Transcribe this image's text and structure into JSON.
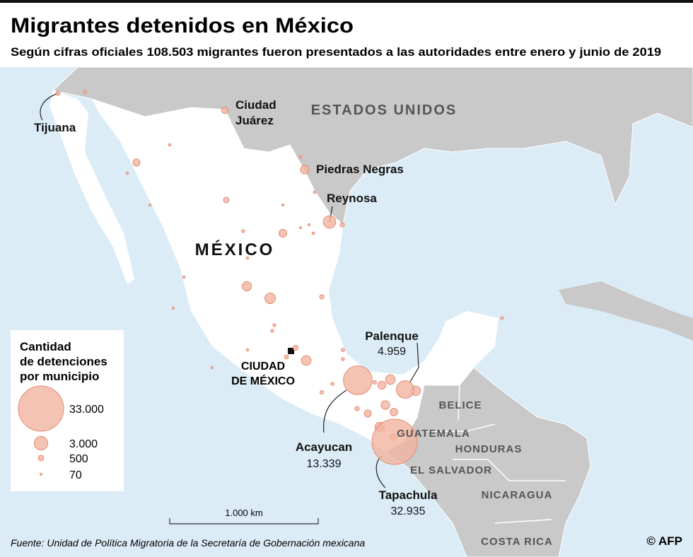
{
  "header": {
    "title": "Migrantes detenidos en México",
    "subtitle": "Según cifras oficiales 108.503 migrantes fueron presentados a las autoridades entre enero y junio de 2019"
  },
  "map": {
    "country_labels": [
      "ESTADOS UNIDOS",
      "MÉXICO",
      "BELICE",
      "GUATEMALA",
      "HONDURAS",
      "EL SALVADOR",
      "NICARAGUA",
      "COSTA RICA"
    ],
    "capital_label": [
      "CIUDAD",
      "DE MÉXICO"
    ],
    "cities": [
      {
        "name": [
          "Tijuana"
        ],
        "value": 300
      },
      {
        "name": [
          "Ciudad",
          "Juárez"
        ],
        "value": 700
      },
      {
        "name": [
          "Piedras Negras"
        ],
        "value": 1200
      },
      {
        "name": [
          "Reynosa"
        ],
        "value": 2500
      },
      {
        "name": [
          "Palenque"
        ],
        "value": 4959,
        "value_label": "4.959"
      },
      {
        "name": [
          "Acayucan"
        ],
        "value": 13339,
        "value_label": "13.339"
      },
      {
        "name": [
          "Tapachula"
        ],
        "value": 32935,
        "value_label": "32.935"
      }
    ],
    "other_municipalities": [
      150,
      800,
      80,
      60,
      100,
      150,
      100,
      300,
      1000,
      150,
      500,
      80,
      80,
      100,
      70,
      1400,
      1800,
      300,
      100,
      100,
      80,
      1500,
      400,
      250,
      150,
      150,
      200,
      150,
      1000,
      1500,
      200,
      1400,
      1200,
      800,
      300,
      900,
      1400,
      600,
      150,
      200,
      150,
      100,
      80
    ],
    "legend": {
      "title": [
        "Cantidad",
        "de detenciones",
        "por municipio"
      ],
      "sizes": [
        {
          "value": 33000,
          "label": "33.000"
        },
        {
          "value": 3000,
          "label": "3.000"
        },
        500,
        70
      ]
    },
    "scale_bar": "1.000  km"
  },
  "footer": {
    "source": "Fuente: Unidad de Política Migratoria de la Secretaría de Gobernación mexicana",
    "credit": "© AFP"
  }
}
